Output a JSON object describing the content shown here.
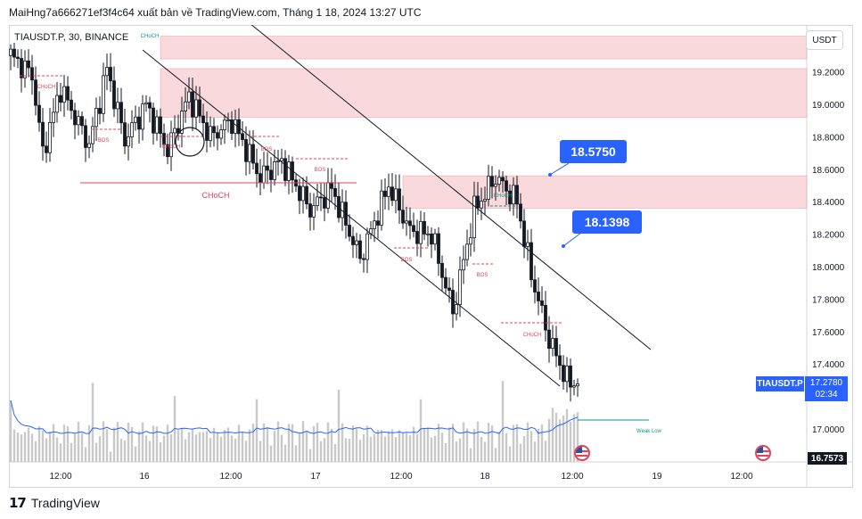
{
  "header": {
    "text": "MaiHng7a666271ef3f4c64 xuất bản về TradingView.com, Tháng 1 18, 2024 13:27 UTC"
  },
  "symbol_legend": "TIAUSDT.P, 30, BINANCE",
  "currency_button": "USDT",
  "footer": {
    "brand": "TradingView",
    "logo": "17"
  },
  "price_axis": {
    "labels": [
      "19.2000",
      "19.0000",
      "18.8000",
      "18.6000",
      "18.4000",
      "18.2000",
      "18.0000",
      "17.8000",
      "17.6000",
      "17.4000",
      "17.0000"
    ]
  },
  "time_axis": {
    "labels": [
      "12:00",
      "16",
      "12:00",
      "17",
      "12:00",
      "18",
      "12:00",
      "19",
      "12:00"
    ]
  },
  "last_price": {
    "symbol": "TIAUSDT.P",
    "price": "17.2780",
    "countdown": "02:34"
  },
  "low_marker": "16.7573",
  "callouts": [
    {
      "text": "18.5750"
    },
    {
      "text": "18.1398"
    }
  ],
  "structure_labels": [
    {
      "text": "CHoCH",
      "type": "bearish"
    },
    {
      "text": "CHoCH",
      "type": "bullish"
    },
    {
      "text": "BOS",
      "type": "bearish"
    },
    {
      "text": "CHoCH",
      "type": "bearish"
    },
    {
      "text": "BOS",
      "type": "bearish"
    },
    {
      "text": "BOS",
      "type": "bearish"
    },
    {
      "text": "CHoCH",
      "type": "bearish"
    },
    {
      "text": "BOS",
      "type": "bearish"
    },
    {
      "text": "BOS",
      "type": "bearish"
    },
    {
      "text": "CHoCH",
      "type": "bullish"
    },
    {
      "text": "CHoCH",
      "type": "bearish"
    },
    {
      "text": "Weak Low",
      "type": "bullish"
    }
  ],
  "colors": {
    "bull": "#131722",
    "bear": "#131722",
    "bearish_label": "#e0435a",
    "bullish_label": "#089981",
    "zone": "#f7c4c9",
    "accent": "#2962ff",
    "volume": "#c9c9c9",
    "volume_ma": "#2962ff"
  },
  "chart_data": {
    "type": "candlestick",
    "symbol": "TIAUSDT.P",
    "interval": "30",
    "exchange": "BINANCE",
    "ylim": [
      16.7573,
      19.42
    ],
    "x_ticks": [
      "12:00",
      "16",
      "12:00",
      "17",
      "12:00",
      "18",
      "12:00",
      "19",
      "12:00"
    ],
    "key_levels": [
      {
        "label": "18.5750",
        "value": 18.575
      },
      {
        "label": "18.1398",
        "value": 18.1398
      }
    ],
    "supply_zones": [
      {
        "top": 19.42,
        "bottom": 19.28
      },
      {
        "top": 19.22,
        "bottom": 18.92
      },
      {
        "top": 18.56,
        "bottom": 18.36
      }
    ],
    "anchors": [
      {
        "t": 0,
        "p": 19.3
      },
      {
        "t": 6,
        "p": 19.18
      },
      {
        "t": 9,
        "p": 18.7
      },
      {
        "t": 14,
        "p": 19.1
      },
      {
        "t": 22,
        "p": 18.75
      },
      {
        "t": 27,
        "p": 19.22
      },
      {
        "t": 32,
        "p": 18.78
      },
      {
        "t": 38,
        "p": 19.0
      },
      {
        "t": 44,
        "p": 18.72
      },
      {
        "t": 50,
        "p": 19.05
      },
      {
        "t": 56,
        "p": 18.8
      },
      {
        "t": 62,
        "p": 18.9
      },
      {
        "t": 70,
        "p": 18.55
      },
      {
        "t": 76,
        "p": 18.65
      },
      {
        "t": 84,
        "p": 18.35
      },
      {
        "t": 90,
        "p": 18.48
      },
      {
        "t": 98,
        "p": 18.05
      },
      {
        "t": 106,
        "p": 18.5
      },
      {
        "t": 112,
        "p": 18.22
      },
      {
        "t": 118,
        "p": 18.2
      },
      {
        "t": 124,
        "p": 17.72
      },
      {
        "t": 130,
        "p": 18.35
      },
      {
        "t": 136,
        "p": 18.55
      },
      {
        "t": 142,
        "p": 18.4
      },
      {
        "t": 146,
        "p": 17.95
      },
      {
        "t": 151,
        "p": 17.55
      },
      {
        "t": 156,
        "p": 17.3
      },
      {
        "t": 158,
        "p": 17.28
      }
    ],
    "last_close": 17.278
  }
}
